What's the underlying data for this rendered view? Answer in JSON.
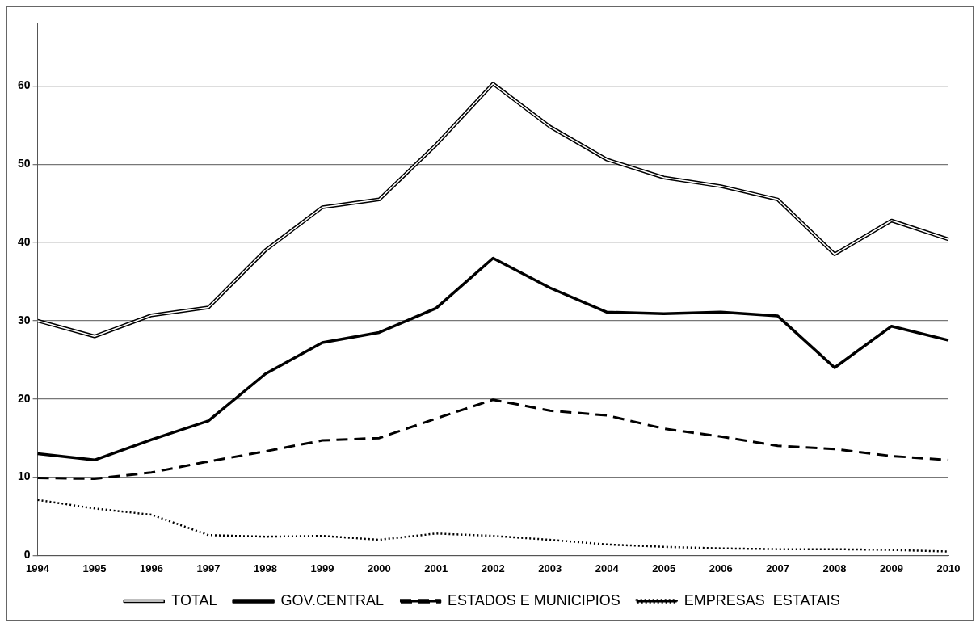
{
  "chart_data": {
    "type": "line",
    "categories": [
      "1994",
      "1995",
      "1996",
      "1997",
      "1998",
      "1999",
      "2000",
      "2001",
      "2002",
      "2003",
      "2004",
      "2005",
      "2006",
      "2007",
      "2008",
      "2009",
      "2010"
    ],
    "series": [
      {
        "name": "TOTAL",
        "color": "#000000",
        "line_style": "solid",
        "values": [
          30.0,
          28.0,
          30.7,
          31.7,
          39.0,
          44.5,
          45.5,
          52.5,
          60.3,
          54.8,
          50.6,
          48.3,
          47.2,
          45.5,
          38.5,
          42.8,
          40.4
        ]
      },
      {
        "name": "GOV.CENTRAL",
        "color": "#000000",
        "line_style": "solid",
        "values": [
          13.0,
          12.2,
          14.8,
          17.2,
          23.2,
          27.2,
          28.5,
          31.6,
          38.0,
          34.2,
          31.1,
          30.9,
          31.1,
          30.6,
          24.0,
          29.3,
          27.5
        ]
      },
      {
        "name": "ESTADOS E MUNICIPIOS",
        "color": "#000000",
        "line_style": "dashed",
        "values": [
          9.9,
          9.8,
          10.6,
          12.0,
          13.3,
          14.7,
          15.0,
          17.5,
          19.9,
          18.5,
          17.9,
          16.2,
          15.2,
          14.0,
          13.6,
          12.7,
          12.2
        ]
      },
      {
        "name": "EMPRESAS  ESTATAIS",
        "color": "#000000",
        "line_style": "dotted",
        "values": [
          7.1,
          6.0,
          5.2,
          2.6,
          2.4,
          2.5,
          2.0,
          2.8,
          2.5,
          2.0,
          1.4,
          1.1,
          0.9,
          0.8,
          0.8,
          0.7,
          0.5
        ]
      }
    ],
    "ylim": [
      0,
      68
    ],
    "yticks": [
      0,
      10,
      20,
      30,
      40,
      50,
      60
    ],
    "grid": "y",
    "legend": "bottom",
    "marker": "none"
  }
}
